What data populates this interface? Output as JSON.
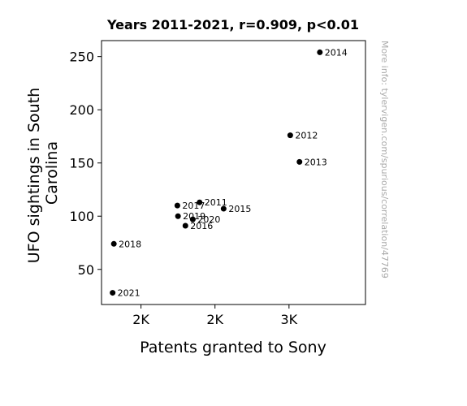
{
  "chart_data": {
    "type": "scatter",
    "title": "Years 2011-2021, r=0.909, p<0.01",
    "xlabel": "Patents granted to Sony",
    "ylabel_lines": [
      "UFO sightings in South",
      "Carolina"
    ],
    "xlim": [
      1480,
      3620
    ],
    "ylim": [
      17,
      265
    ],
    "x_ticks": [
      {
        "value": 1800,
        "label": "2K"
      },
      {
        "value": 2400,
        "label": "2K"
      },
      {
        "value": 3000,
        "label": "3K"
      }
    ],
    "y_ticks": [
      50,
      100,
      150,
      200,
      250
    ],
    "grid": false,
    "marker_color": "#000000",
    "points": [
      {
        "label": "2011",
        "x": 2275,
        "y": 113
      },
      {
        "label": "2012",
        "x": 3010,
        "y": 176
      },
      {
        "label": "2013",
        "x": 3085,
        "y": 151
      },
      {
        "label": "2014",
        "x": 3250,
        "y": 254
      },
      {
        "label": "2015",
        "x": 2470,
        "y": 107
      },
      {
        "label": "2016",
        "x": 2160,
        "y": 91
      },
      {
        "label": "2017",
        "x": 2095,
        "y": 110
      },
      {
        "label": "2018",
        "x": 1580,
        "y": 74
      },
      {
        "label": "2019",
        "x": 2100,
        "y": 100
      },
      {
        "label": "2020",
        "x": 2220,
        "y": 97
      },
      {
        "label": "2021",
        "x": 1570,
        "y": 28
      }
    ],
    "watermark": "More info: tylervigen.com/spurious/correlation/47769"
  }
}
